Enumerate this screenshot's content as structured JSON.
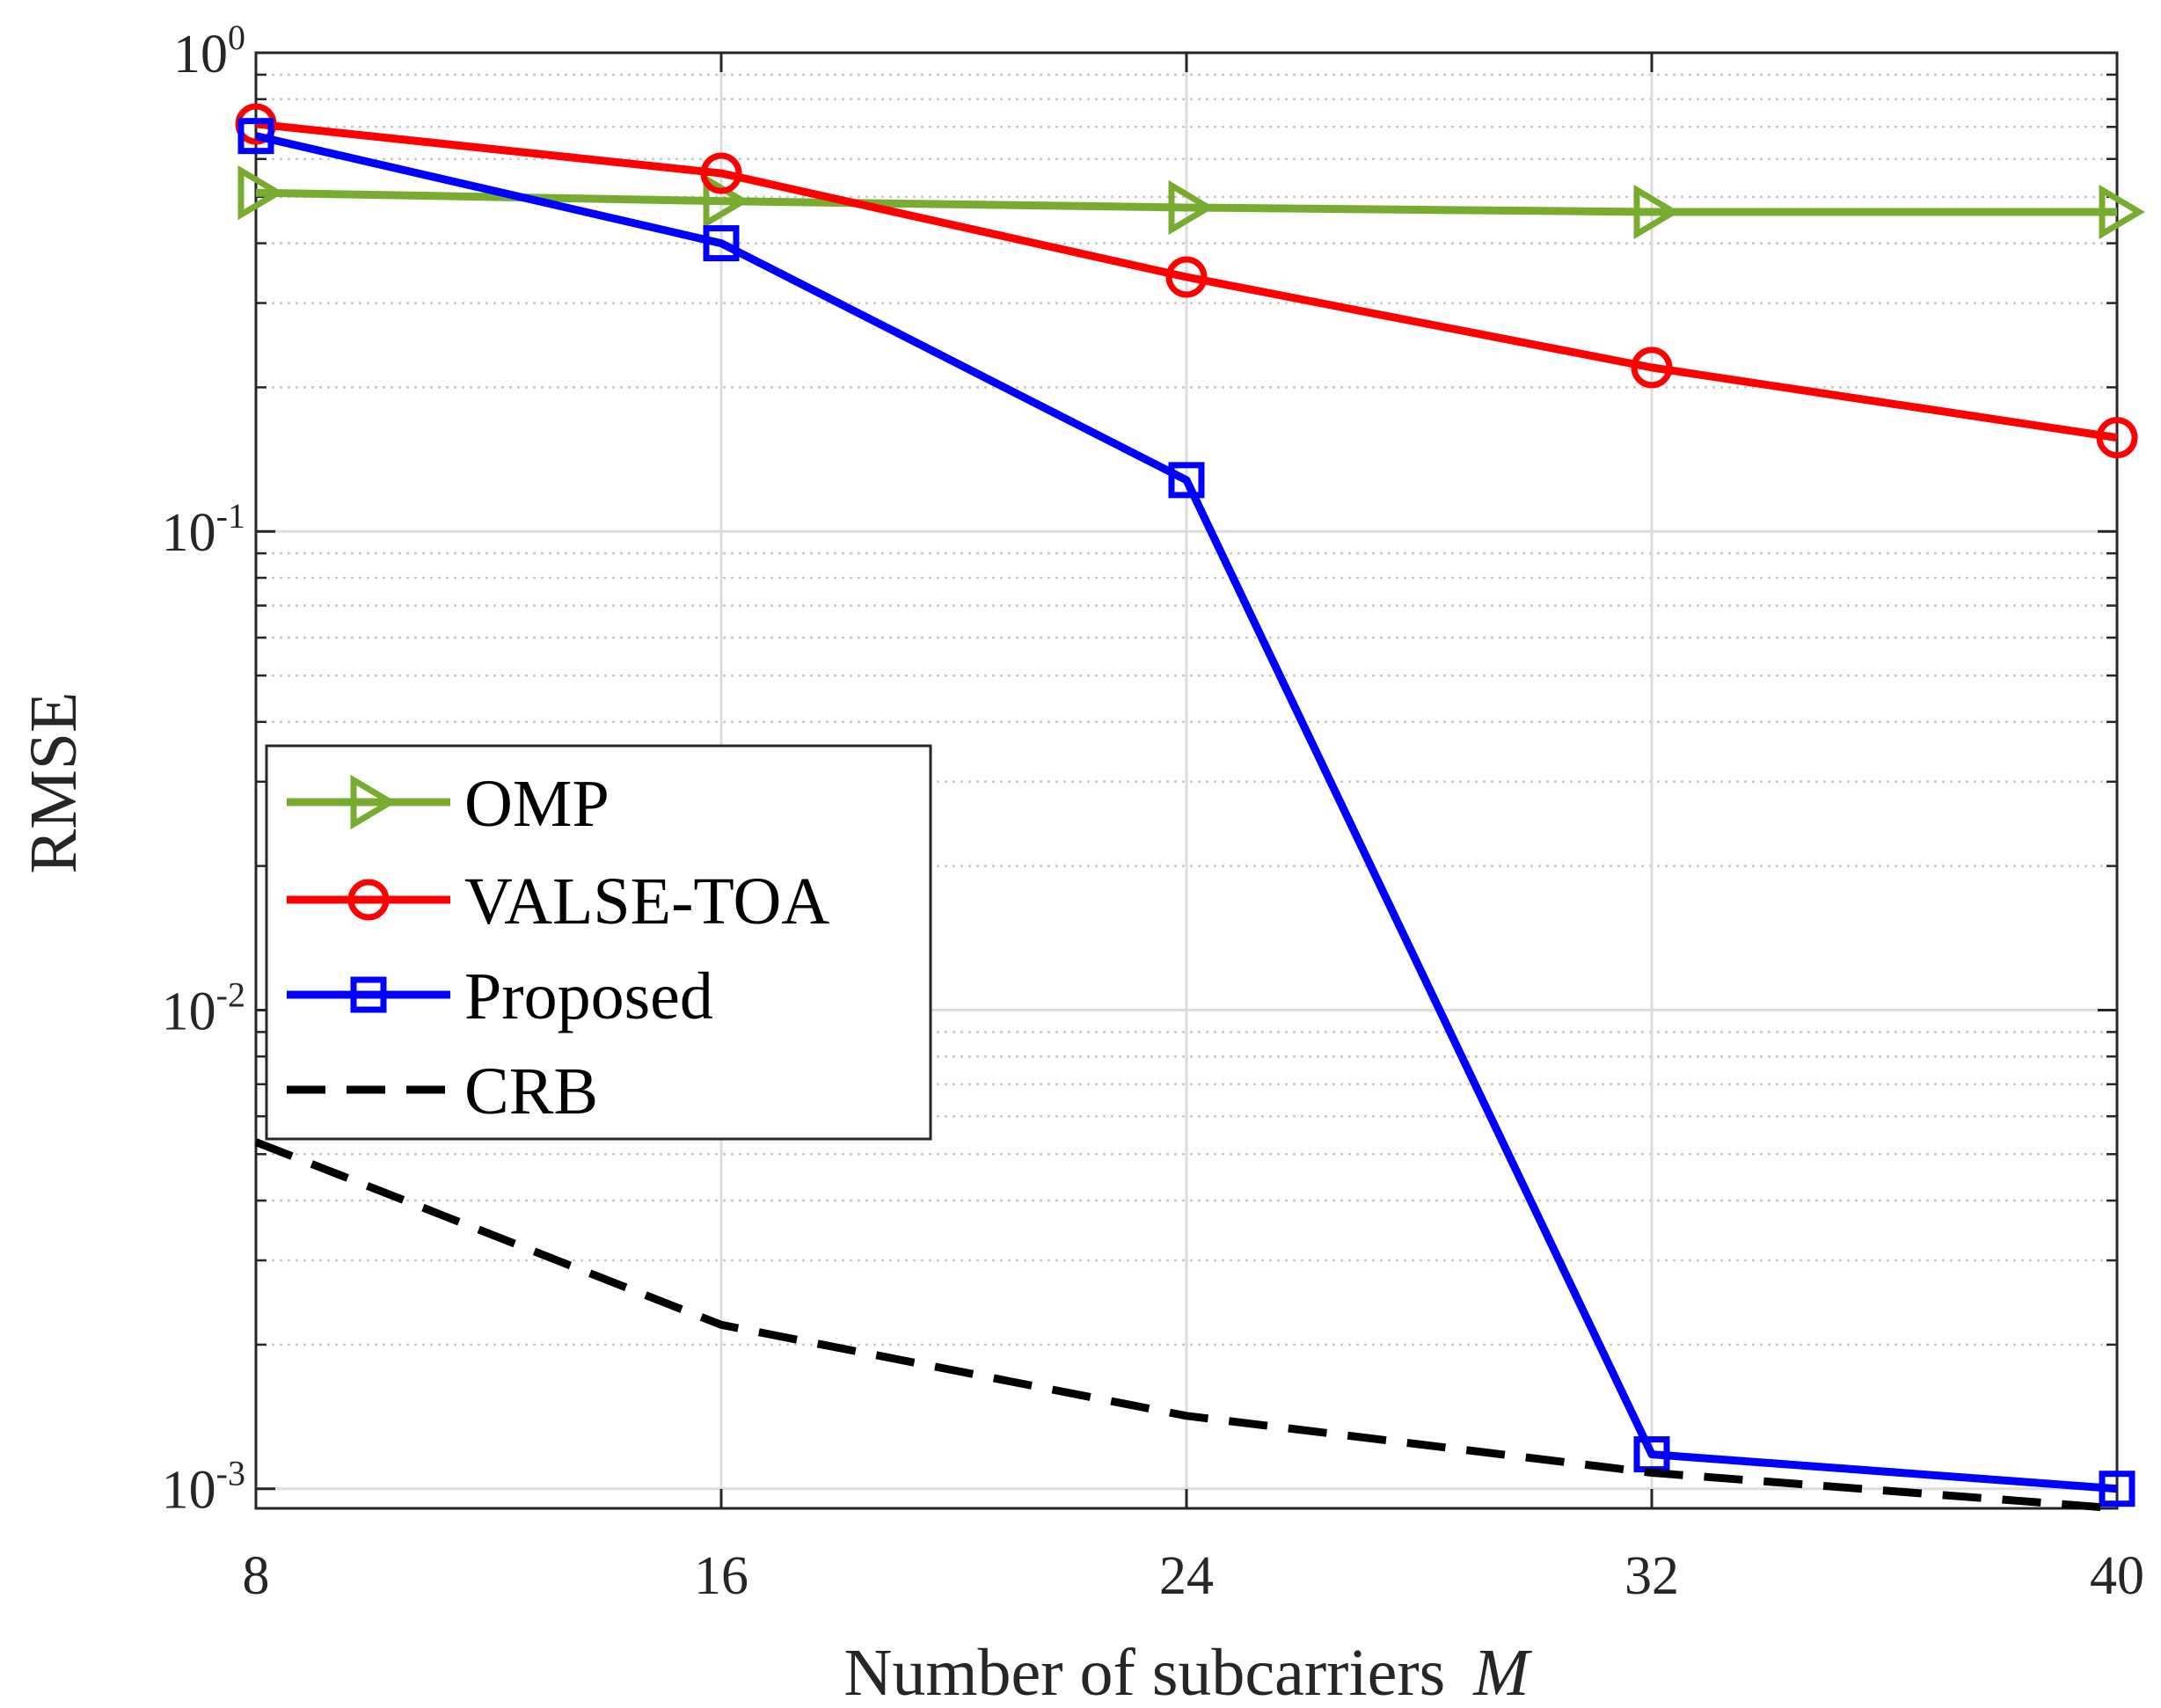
{
  "chart_data": {
    "type": "line",
    "title": "",
    "xlabel": "Number of subcarriers",
    "xlabel_var": "M",
    "ylabel": "RMSE",
    "yscale": "log",
    "x": [
      8,
      16,
      24,
      32,
      40
    ],
    "xlim": [
      8,
      40
    ],
    "ylim": [
      0.00091,
      1
    ],
    "xticks": [
      "8",
      "16",
      "24",
      "32",
      "40"
    ],
    "yticks": [
      {
        "base": "10",
        "exp": "0",
        "value": 1
      },
      {
        "base": "10",
        "exp": "-1",
        "value": 0.1
      },
      {
        "base": "10",
        "exp": "-2",
        "value": 0.01
      },
      {
        "base": "10",
        "exp": "-3",
        "value": 0.001
      }
    ],
    "grid": true,
    "legend_position": "center-left",
    "series": [
      {
        "name": "OMP",
        "color": "#77AC30",
        "marker": "triangle-right",
        "dash": "solid",
        "values": [
          0.51,
          0.49,
          0.475,
          0.465,
          0.465
        ]
      },
      {
        "name": "VALSE-TOA",
        "color": "#FF0000",
        "marker": "circle",
        "dash": "solid",
        "values": [
          0.71,
          0.56,
          0.34,
          0.22,
          0.157
        ]
      },
      {
        "name": "Proposed",
        "color": "#0000FF",
        "marker": "square",
        "dash": "solid",
        "values": [
          0.67,
          0.4,
          0.128,
          0.00118,
          0.001
        ]
      },
      {
        "name": "CRB",
        "color": "#000000",
        "marker": "none",
        "dash": "dashed",
        "values": [
          0.0053,
          0.0022,
          0.00142,
          0.00108,
          0.00091
        ]
      }
    ]
  }
}
